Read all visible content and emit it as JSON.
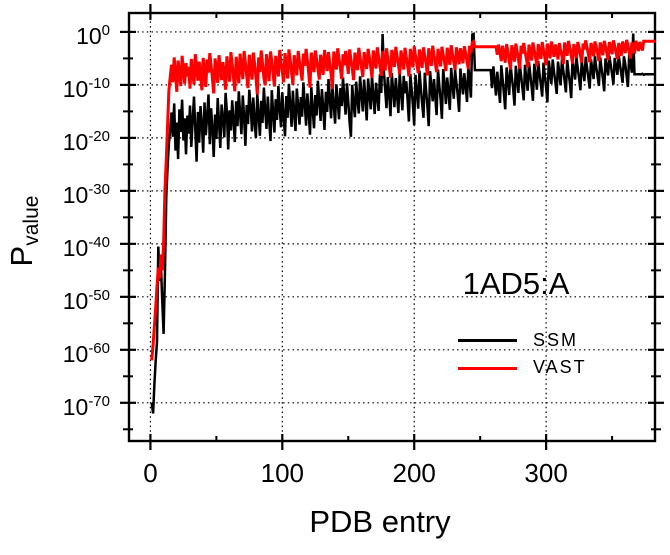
{
  "chart_data": {
    "type": "line",
    "title": "",
    "xlabel": "PDB entry",
    "ylabel": "P_value",
    "ylabel_main": "P",
    "ylabel_sub": "value",
    "annotation": "1AD5:A",
    "yscale": "log10",
    "grid": "dotted",
    "legend_position": "inside-right",
    "x_range": [
      -17,
      383.3
    ],
    "y_log10_range": [
      3.76,
      -77.4
    ],
    "x_major_ticks": [
      0,
      100,
      200,
      300
    ],
    "x_minor_ticks": [
      50,
      150,
      250,
      350
    ],
    "y_major_tick_exponents": [
      0,
      -10,
      -20,
      -30,
      -40,
      -50,
      -60,
      -70
    ],
    "y_minor_tick_exponents": [
      -5,
      -15,
      -25,
      -35,
      -45,
      -55,
      -65,
      -75
    ],
    "y_tick_base": "10",
    "x_start": 1,
    "x_step": 1,
    "frame_color": "#000000",
    "grid_color": "#000000",
    "series": [
      {
        "name": "SSM",
        "color": "#000000",
        "log10_values": [
          -70,
          -72,
          -66.5,
          -62,
          -58.5,
          -40.5,
          -47,
          -44.5,
          -51,
          -57,
          -46,
          -31,
          -25.5,
          -21,
          -18.5,
          -15.2,
          -19.8,
          -13.5,
          -22.4,
          -17.1,
          -24,
          -14.6,
          -18.9,
          -12.8,
          -20.5,
          -16.3,
          -23.1,
          -15.8,
          -19.2,
          -13.9,
          -21.7,
          -16.8,
          -12.2,
          -18.4,
          -24.5,
          -15.1,
          -20.9,
          -14,
          -17.6,
          -22.8,
          -13.3,
          -19.5,
          -16,
          -11.8,
          -21.2,
          -14.4,
          -18.1,
          -23.6,
          -15.6,
          -20.2,
          -12.5,
          -17,
          -21.9,
          -13.7,
          -16.5,
          -19.9,
          -11.5,
          -15,
          -22.2,
          -14.8,
          -18.6,
          -12.9,
          -16.7,
          -20.8,
          -13.1,
          -17.8,
          -11.2,
          -15.4,
          -19.3,
          -12,
          -16.1,
          -21.5,
          -13.8,
          -17.4,
          -10.9,
          -14.2,
          -18.8,
          -12.4,
          -16.9,
          -20,
          -11.7,
          -15.7,
          -19.6,
          -13,
          -17.2,
          -10.5,
          -14.9,
          -18.3,
          -12.2,
          -16.4,
          -20.6,
          -11,
          -15.3,
          -19,
          -12.7,
          -16.6,
          -10.2,
          -14.5,
          -18,
          -11.4,
          -15.9,
          -19.7,
          -12.1,
          -16.2,
          -9.8,
          -13.6,
          -17.9,
          -11.1,
          -15.5,
          -18.7,
          -10.7,
          -14.1,
          -17.5,
          -12.3,
          -16,
          -9.5,
          -13.4,
          -17.7,
          -11.6,
          -15.2,
          -19.4,
          -10.4,
          -14.7,
          -18.2,
          -11.9,
          -15.8,
          -9.2,
          -13.2,
          -16.8,
          -10.8,
          -14.3,
          -18.5,
          -11.3,
          -15.1,
          -8.9,
          -12.6,
          -16.3,
          -10.1,
          -13.9,
          -17.3,
          -9.9,
          -13,
          -16.5,
          -10.6,
          -14,
          -8.6,
          -12.4,
          -15.6,
          -9.7,
          -13.3,
          -17.1,
          -19.8,
          -10,
          -13.7,
          -16.1,
          -9.4,
          -12.8,
          -15.4,
          -8.4,
          -11.9,
          -15,
          -9,
          -12.5,
          -16.7,
          -8.8,
          -11.7,
          -14.6,
          -8.2,
          -12,
          -15.5,
          -9.6,
          -12.2,
          -14.9,
          -8,
          -11.5,
          -0.4,
          -7.5,
          -11,
          -14.4,
          -8.5,
          -11.8,
          -15.9,
          -7.8,
          -10.9,
          -14.2,
          -8.7,
          -12.1,
          -15.3,
          -7.6,
          -11.2,
          -14.8,
          -8.3,
          -11.6,
          -9.3,
          -12.9,
          -16.9,
          -7.9,
          -10.7,
          -13.8,
          -17.6,
          -8.1,
          -11.4,
          -14.5,
          -7.3,
          -10.5,
          -13.5,
          -16.2,
          -7.7,
          -11.1,
          -14.1,
          -17.8,
          -7.4,
          -10.3,
          -13.1,
          -8.9,
          -12.3,
          -15.7,
          -7.1,
          -10.1,
          -12.7,
          -16.4,
          -7,
          -9.9,
          -13.6,
          -8.6,
          -11.3,
          -14.7,
          -6.8,
          -10,
          -12.6,
          -7.2,
          -9.6,
          -12.1,
          -15.1,
          -6.9,
          -9.4,
          -11.8,
          -7.8,
          -10.2,
          -13.2,
          -6.6,
          -9.1,
          -12.4,
          -0.5,
          -0.4,
          -7.2,
          -7.2,
          -7.2,
          -7.2,
          -7.2,
          -7.2,
          -7.2,
          -7.2,
          -7.2,
          -7.2,
          -7.2,
          -7.2,
          -7.2,
          -10.6,
          -6.5,
          -9.3,
          -12,
          -7.5,
          -10.4,
          -13.4,
          -6.3,
          -8.9,
          -11.6,
          -14.6,
          -6.7,
          -9,
          -11.9,
          -6.1,
          -8.5,
          -10.8,
          -13.9,
          -6.4,
          -8.8,
          -11.5,
          -5.9,
          -8.3,
          -10.6,
          -12.9,
          -6.2,
          -8.7,
          -11.1,
          -5.7,
          -8.1,
          -10.3,
          -13,
          -6,
          -8.4,
          -10.9,
          -5.5,
          -7.9,
          -10,
          -12.2,
          -5.8,
          -8.2,
          -10.5,
          -13.3,
          -5.4,
          -7.7,
          -9.8,
          -5.2,
          -7.5,
          -9.5,
          -11.7,
          -5.6,
          -7.8,
          -10.1,
          -5,
          -7.3,
          -9.2,
          -11.4,
          -5.3,
          -7.6,
          -9.7,
          -12.5,
          -5.1,
          -7.1,
          -9,
          -4.9,
          -6.9,
          -8.8,
          -11,
          -5.5,
          -7.4,
          -9.3,
          -4.7,
          -6.7,
          -8.6,
          -10.7,
          -5.2,
          -7,
          -8.9,
          -4.6,
          -6.6,
          -8.4,
          -10.2,
          -4.8,
          -6.8,
          -8.7,
          -11.2,
          -5,
          -6.5,
          -8.2,
          -4.5,
          -6.3,
          -8,
          -9.9,
          -4.9,
          -6.4,
          -8.1,
          -4.4,
          -6.2,
          -7.9,
          -9.6,
          -4.6,
          -6.1,
          -8.3,
          -10.4,
          -4.3,
          -6,
          -7.7,
          -0.3,
          -8,
          -8,
          -8,
          -8,
          -8,
          -8,
          -7.9,
          -8.1,
          -8,
          -8,
          -8,
          -8,
          -8,
          -8,
          -8,
          -8,
          -8
        ]
      },
      {
        "name": "VAST",
        "color": "#ff0000",
        "log10_values": [
          -62,
          -59,
          -55.5,
          -52,
          -48,
          -44.5,
          -46.5,
          -42,
          -45,
          -40,
          -30,
          -24,
          -17.5,
          -11,
          -8.5,
          -6.2,
          -9.5,
          -4.8,
          -8.1,
          -11.3,
          -5.4,
          -7.8,
          -10.2,
          -4.5,
          -7.1,
          -9.8,
          -5.9,
          -8.4,
          -6.6,
          -10.7,
          -5.1,
          -7.5,
          -9.9,
          -4.2,
          -6.8,
          -9.2,
          -5.6,
          -8,
          -11,
          -4.9,
          -7.3,
          -10.4,
          -5.2,
          -7.7,
          -4,
          -6.4,
          -8.8,
          -11.6,
          -5,
          -7.4,
          -9.6,
          -4.4,
          -6.9,
          -9.1,
          -5.7,
          -8.2,
          -10.9,
          -4.6,
          -7,
          -9.4,
          -3.8,
          -6.1,
          -8.6,
          -11.2,
          -4.7,
          -7.2,
          -9.7,
          -4.1,
          -6.5,
          -8.9,
          -3.6,
          -5.8,
          -8.3,
          -10.6,
          -4.3,
          -6.7,
          -9,
          -3.9,
          -6,
          -8.5,
          -11.8,
          -4.8,
          -7.6,
          -3.5,
          -5.9,
          -8.7,
          -10.1,
          -4.2,
          -6.6,
          -9.3,
          -3.7,
          -5.5,
          -7.9,
          -10.3,
          -4.5,
          -6.3,
          -8.4,
          -3.4,
          -5.7,
          -7.5,
          -9.5,
          -4,
          -6.2,
          -8.8,
          -3.3,
          -5.3,
          -7.7,
          -10,
          -4.4,
          -6.1,
          -8.2,
          -3.6,
          -5.6,
          -7.3,
          -9.2,
          -4.1,
          -6.4,
          -3.2,
          -5.4,
          -7.8,
          -10.5,
          -3.9,
          -5.8,
          -7.6,
          -3.5,
          -5.2,
          -7,
          -9,
          -4.3,
          -6,
          -8.1,
          -3.4,
          -5.5,
          -7.4,
          -3.8,
          -5.9,
          -8,
          -10.8,
          -3.7,
          -5.3,
          -7.1,
          -3.1,
          -5,
          -6.9,
          -8.9,
          -4.2,
          -6.3,
          -3.6,
          -5.7,
          -7.9,
          -3.3,
          -5.1,
          -6.8,
          -9.1,
          -3.9,
          -5.6,
          -7.2,
          -3,
          -4.9,
          -6.7,
          -8.5,
          -3.8,
          -5.4,
          -7,
          -3.2,
          -4.8,
          -6.6,
          -8.7,
          -3.5,
          -5.2,
          -6.9,
          -2.9,
          -4.7,
          -6.4,
          -8.3,
          -3.6,
          -5.1,
          -7.3,
          -3.1,
          -4.9,
          -6.5,
          -8.6,
          -3.4,
          -5,
          -6.6,
          -2.8,
          -4.6,
          -6.2,
          -8,
          -3.5,
          -5.3,
          -7.1,
          -3,
          -4.8,
          -6.3,
          -8.4,
          -3.2,
          -4.9,
          -6.7,
          -2.7,
          -4.5,
          -6.1,
          -7.8,
          -3.3,
          -5.1,
          -6.8,
          -2.9,
          -4.6,
          -6,
          -8.2,
          -3.1,
          -4.7,
          -6.4,
          -2.6,
          -4.4,
          -5.9,
          -7.6,
          -3.2,
          -4.8,
          -6.5,
          -2.8,
          -4.3,
          -5.8,
          -7.4,
          -3,
          -4.5,
          -6.2,
          -2.5,
          -4.2,
          -5.7,
          -7.2,
          -2.9,
          -4.6,
          -6.1,
          -3.1,
          -4.4,
          -5.9,
          -2.7,
          -4.1,
          -5.6,
          -7,
          -2.6,
          -4,
          -2,
          -1.8,
          -2.8,
          -2.8,
          -2.8,
          -2.8,
          -2.8,
          -2.8,
          -2.8,
          -2.8,
          -2.8,
          -2.8,
          -2.8,
          -2.8,
          -2.8,
          -2.8,
          -2.8,
          -2.8,
          -2.8,
          -4.3,
          -2.4,
          -3.9,
          -5.5,
          -2.6,
          -4.2,
          -5.8,
          -2.3,
          -3.8,
          -5.3,
          -7.1,
          -2.5,
          -4,
          -5.6,
          -2.2,
          -3.7,
          -5.2,
          -6.9,
          -2.6,
          -4.1,
          -2.1,
          -3.6,
          -5,
          -6.7,
          -2.4,
          -3.9,
          -5.4,
          -2,
          -3.5,
          -4.9,
          -6.5,
          -2.3,
          -3.8,
          -5.1,
          -1.9,
          -3.4,
          -4.8,
          -6.3,
          -2.2,
          -3.7,
          -5,
          -1.8,
          -3.3,
          -4.7,
          -2.4,
          -3.6,
          -5.2,
          -2.1,
          -3.5,
          -4.6,
          -6.1,
          -2,
          -3.2,
          -4.5,
          -1.7,
          -3.1,
          -4.4,
          -6,
          -2.3,
          -3.4,
          -4.9,
          -1.9,
          -3,
          -4.3,
          -5.8,
          -2.2,
          -3.3,
          -1.6,
          -2.9,
          -4.2,
          -5.7,
          -2.1,
          -3.1,
          -4.6,
          -1.8,
          -2.8,
          -4.1,
          -5.5,
          -2,
          -3,
          -4.4,
          -1.7,
          -2.7,
          -4,
          -5.3,
          -1.9,
          -2.9,
          -4.2,
          -1.6,
          -2.6,
          -3.9,
          -5.1,
          -2.1,
          -3.1,
          -4.5,
          -1.8,
          -2.8,
          -4,
          -1.5,
          -2.5,
          -3.8,
          -5,
          -2,
          -3,
          -4.1,
          -1.7,
          -2.4,
          -3.6,
          -1.9,
          -2.7,
          -3.5,
          -1.75,
          -1.75,
          -1.75,
          -1.75,
          -1.75,
          -1.75,
          -1.75,
          -1.75,
          -1.75,
          -1.75
        ]
      }
    ]
  }
}
